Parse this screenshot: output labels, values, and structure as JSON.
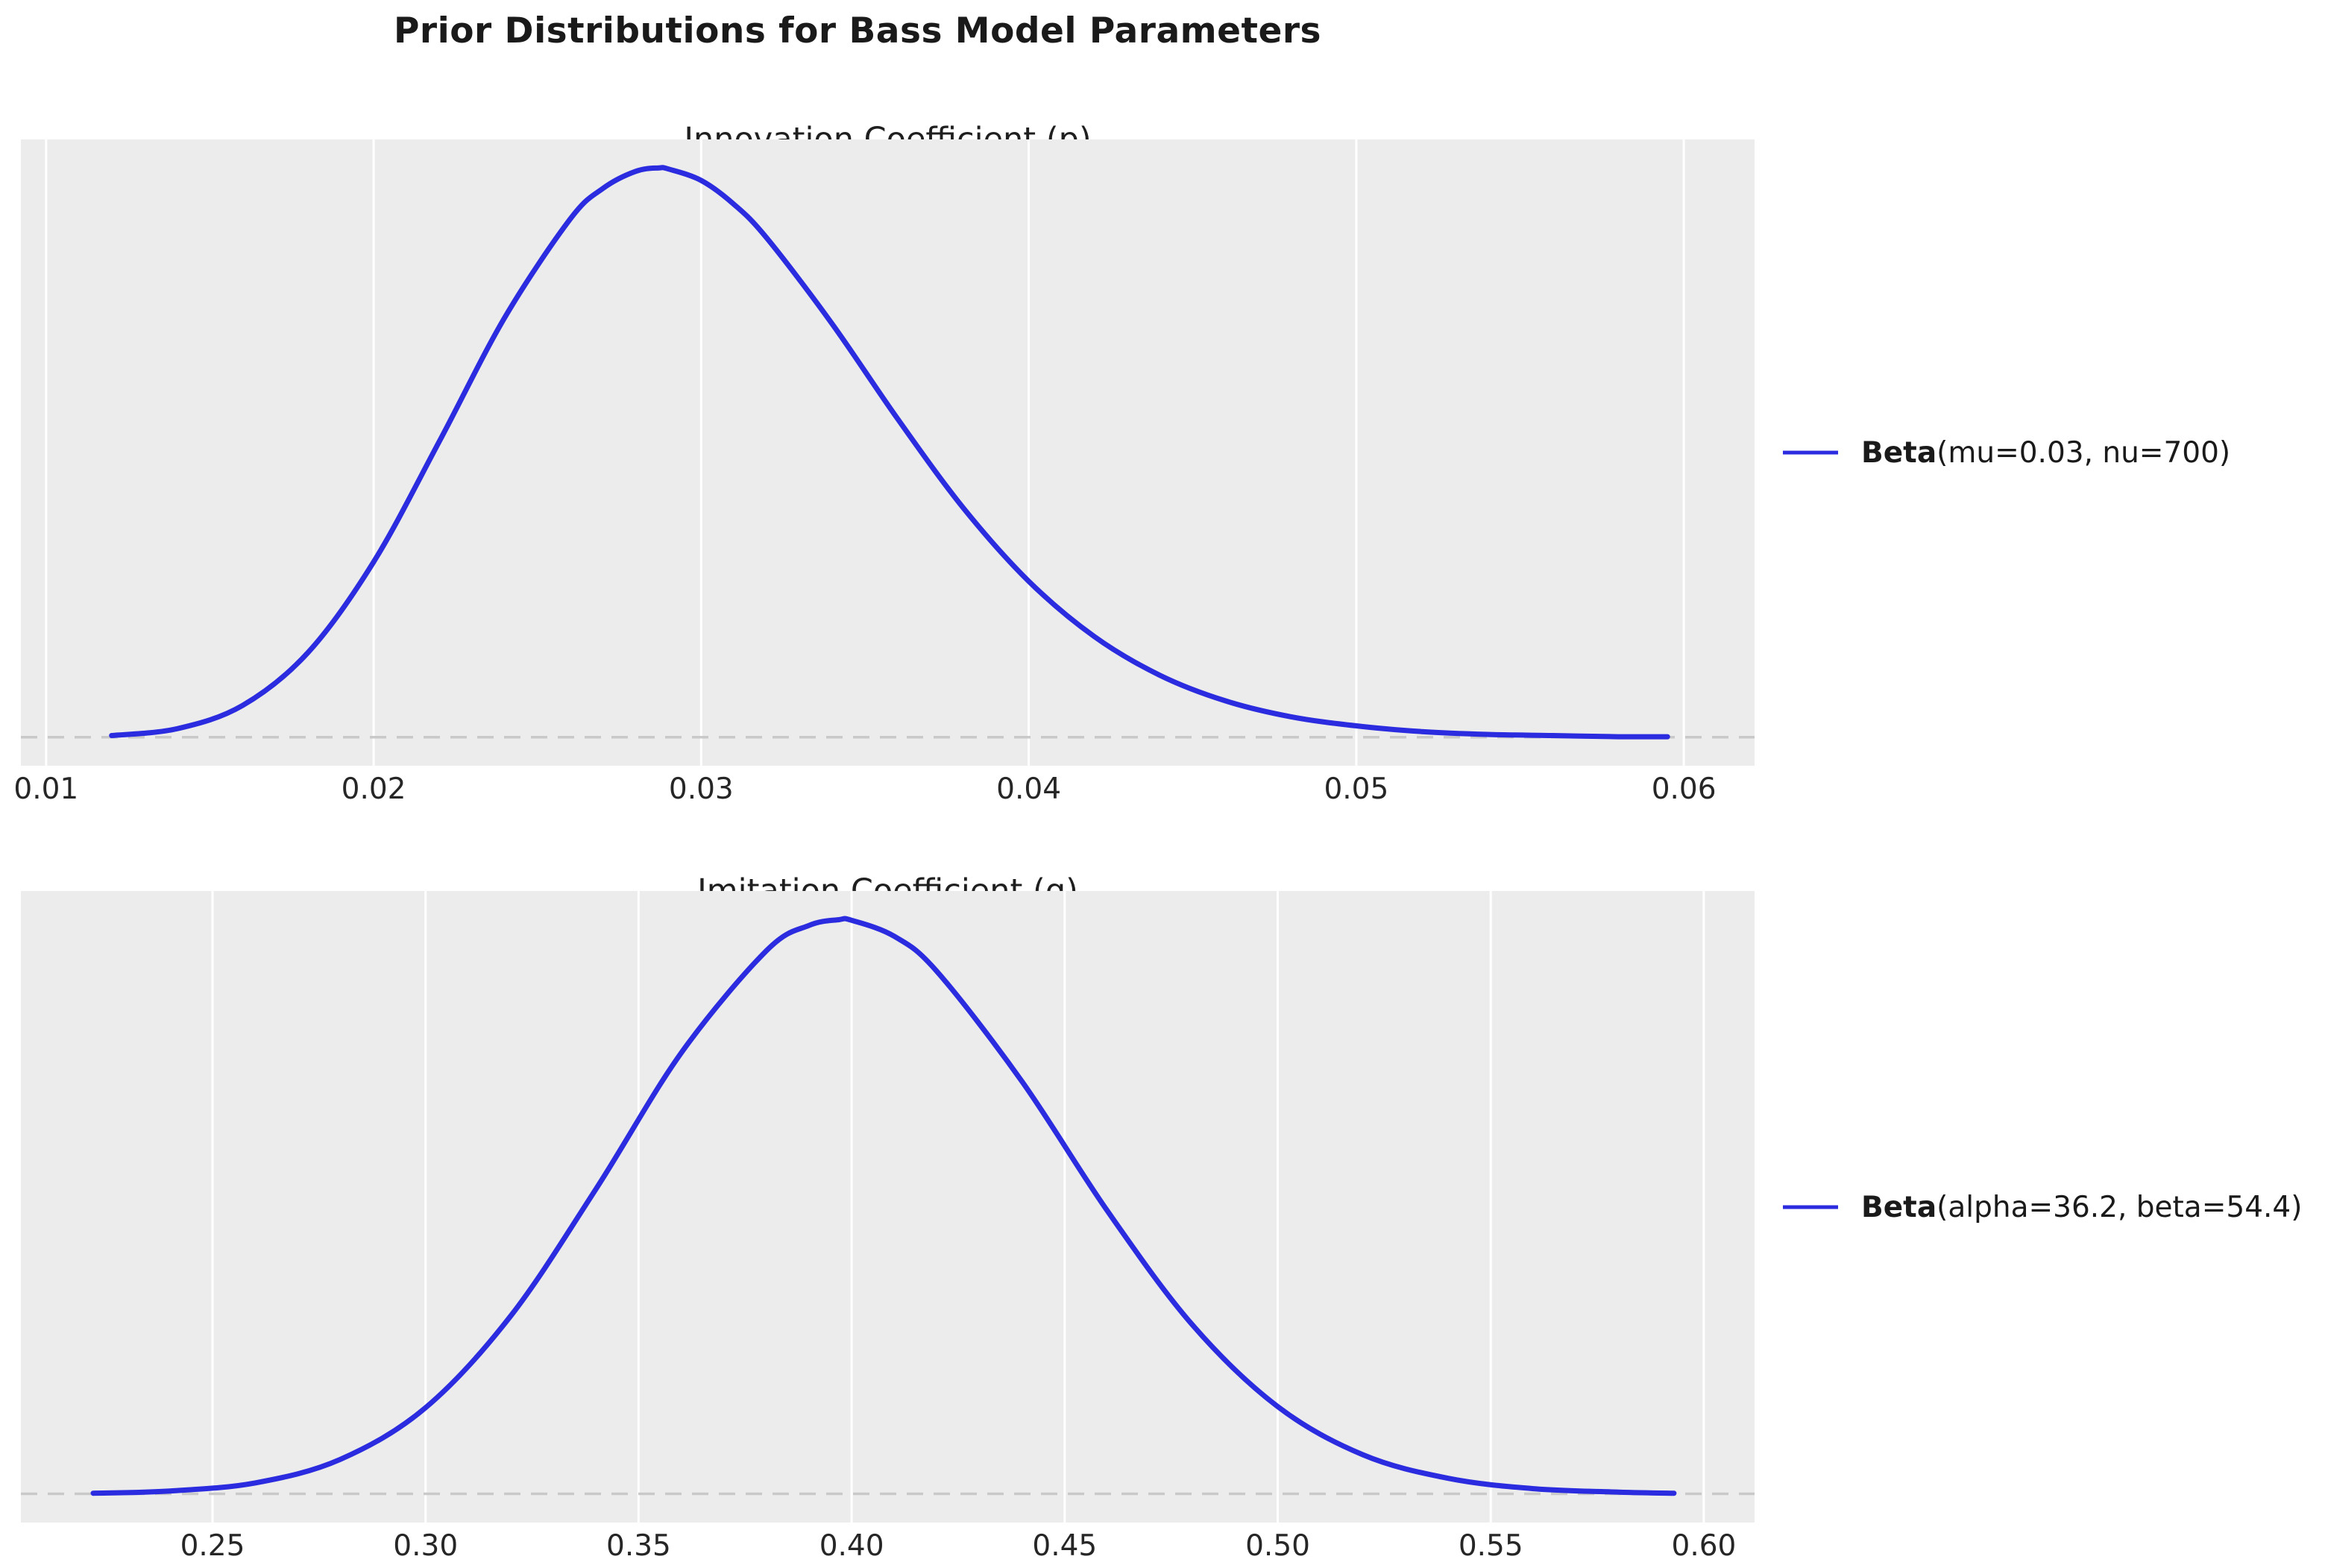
{
  "figure": {
    "title": "Prior Distributions for Bass Model Parameters"
  },
  "colors": {
    "curve_blue": "#2b2bdf",
    "plot_background": "#ececec",
    "gridline": "#ffffff",
    "baseline_dash": "#c9c9c9",
    "text": "#1a1a1a",
    "page_background": "#ffffff"
  },
  "chart_data": [
    {
      "type": "line",
      "title": "Innovation Coefficient (p)",
      "legend_bold": "Beta",
      "legend_rest": "(mu=0.03, nu=700)",
      "line_color": "#2b2bdf",
      "xlabel": "",
      "ylabel": "",
      "xlim": [
        0.00923,
        0.06216
      ],
      "ylim_normalized": [
        -0.05,
        1.05
      ],
      "xticks": [
        0.01,
        0.02,
        0.03,
        0.04,
        0.05,
        0.06
      ],
      "xtick_labels": [
        "0.01",
        "0.02",
        "0.03",
        "0.04",
        "0.05",
        "0.06"
      ],
      "ytick_labels": [],
      "grid": "vertical-white-gridlines",
      "baseline": {
        "y": 0,
        "style": "dashed"
      },
      "peak": {
        "x": 0.0287,
        "y_normalized": 1.0
      },
      "x": [
        0.012,
        0.014,
        0.016,
        0.018,
        0.02,
        0.022,
        0.024,
        0.026,
        0.027,
        0.028,
        0.0287,
        0.029,
        0.03,
        0.031,
        0.032,
        0.034,
        0.036,
        0.038,
        0.04,
        0.042,
        0.044,
        0.046,
        0.048,
        0.05,
        0.052,
        0.054,
        0.056,
        0.058,
        0.0595
      ],
      "y_normalized": [
        0.003,
        0.015,
        0.056,
        0.149,
        0.308,
        0.519,
        0.737,
        0.91,
        0.964,
        0.994,
        1.0,
        0.998,
        0.978,
        0.936,
        0.877,
        0.726,
        0.559,
        0.403,
        0.274,
        0.177,
        0.109,
        0.064,
        0.036,
        0.02,
        0.01,
        0.005,
        0.003,
        0.001,
        0.001
      ]
    },
    {
      "type": "line",
      "title": "Imitation Coefficient (q)",
      "legend_bold": "Beta",
      "legend_rest": "(alpha=36.2, beta=54.4)",
      "line_color": "#2b2bdf",
      "xlabel": "",
      "ylabel": "",
      "xlim": [
        0.20502,
        0.61191
      ],
      "ylim_normalized": [
        -0.05,
        1.05
      ],
      "xticks": [
        0.25,
        0.3,
        0.35,
        0.4,
        0.45,
        0.5,
        0.55,
        0.6
      ],
      "xtick_labels": [
        "0.25",
        "0.30",
        "0.35",
        "0.40",
        "0.45",
        "0.50",
        "0.55",
        "0.60"
      ],
      "ytick_labels": [],
      "grid": "vertical-white-gridlines",
      "baseline": {
        "y": 0,
        "style": "dashed"
      },
      "peak": {
        "x": 0.3973,
        "y_normalized": 1.0
      },
      "x": [
        0.222,
        0.24,
        0.26,
        0.28,
        0.3,
        0.32,
        0.34,
        0.36,
        0.38,
        0.39,
        0.397,
        0.4,
        0.41,
        0.42,
        0.44,
        0.46,
        0.48,
        0.5,
        0.52,
        0.54,
        0.56,
        0.58,
        0.593
      ],
      "y_normalized": [
        0.001,
        0.005,
        0.019,
        0.06,
        0.15,
        0.31,
        0.531,
        0.768,
        0.946,
        0.99,
        1.0,
        0.999,
        0.971,
        0.91,
        0.718,
        0.493,
        0.294,
        0.152,
        0.068,
        0.027,
        0.009,
        0.003,
        0.001
      ]
    }
  ]
}
